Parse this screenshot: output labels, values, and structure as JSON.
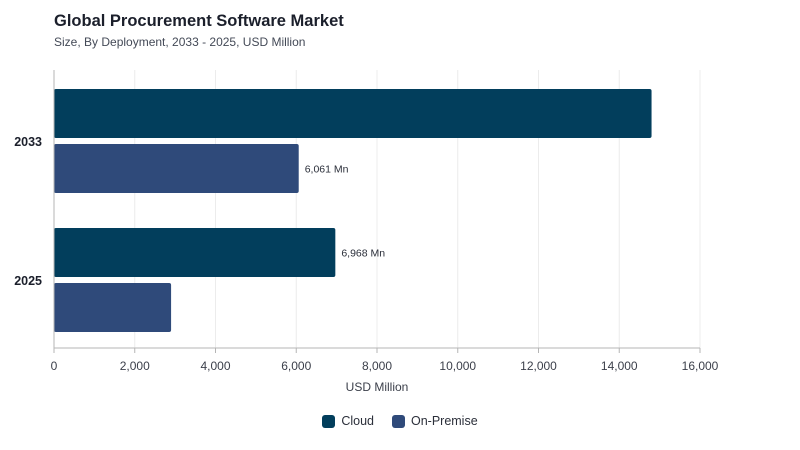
{
  "chart_data": {
    "type": "bar",
    "orientation": "horizontal",
    "title": "Global Procurement Software Market",
    "subtitle": "Size, By Deployment, 2033 - 2025, USD Million",
    "categories": [
      "2033",
      "2025"
    ],
    "series": [
      {
        "name": "Cloud",
        "values": [
          14800,
          6968
        ],
        "color": "#023e5c",
        "labels": [
          "",
          "6,968 Mn"
        ]
      },
      {
        "name": "On-Premise",
        "values": [
          6061,
          2900
        ],
        "color": "#2f4a7a",
        "labels": [
          "6,061 Mn",
          ""
        ]
      }
    ],
    "xlabel": "USD Million",
    "xlim": [
      0,
      16000
    ],
    "xticks": [
      "0",
      "2,000",
      "4,000",
      "6,000",
      "8,000",
      "10,000",
      "12,000",
      "14,000",
      "16,000"
    ],
    "grid": true,
    "legend_position": "bottom"
  }
}
